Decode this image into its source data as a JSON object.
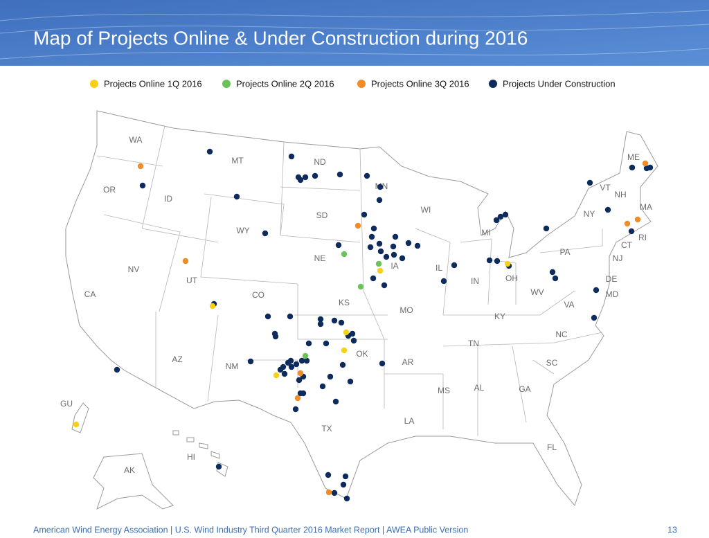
{
  "header": {
    "title": "Map of Projects Online & Under Construction during 2016"
  },
  "legend": [
    {
      "label": "Projects Online 1Q 2016",
      "color": "#f7d117"
    },
    {
      "label": "Projects Online 2Q 2016",
      "color": "#6cc25a"
    },
    {
      "label": "Projects Online 3Q 2016",
      "color": "#f28c28"
    },
    {
      "label": "Projects Under Construction",
      "color": "#0d2b5c"
    }
  ],
  "map": {
    "state_labels": [
      "WA",
      "OR",
      "CA",
      "ID",
      "NV",
      "MT",
      "WY",
      "UT",
      "AZ",
      "CO",
      "NM",
      "ND",
      "SD",
      "NE",
      "KS",
      "OK",
      "TX",
      "MN",
      "IA",
      "MO",
      "AR",
      "LA",
      "WI",
      "IL",
      "MI",
      "IN",
      "OH",
      "KY",
      "TN",
      "MS",
      "AL",
      "GA",
      "FL",
      "SC",
      "NC",
      "VA",
      "WV",
      "PA",
      "NY",
      "VT",
      "NH",
      "ME",
      "MA",
      "RI",
      "CT",
      "NJ",
      "DE",
      "MD",
      "GU",
      "HI",
      "AK"
    ]
  },
  "footer": {
    "text": "American Wind Energy Association | U.S. Wind Industry Third Quarter 2016 Market Report | AWEA Public Version",
    "page": "13"
  }
}
